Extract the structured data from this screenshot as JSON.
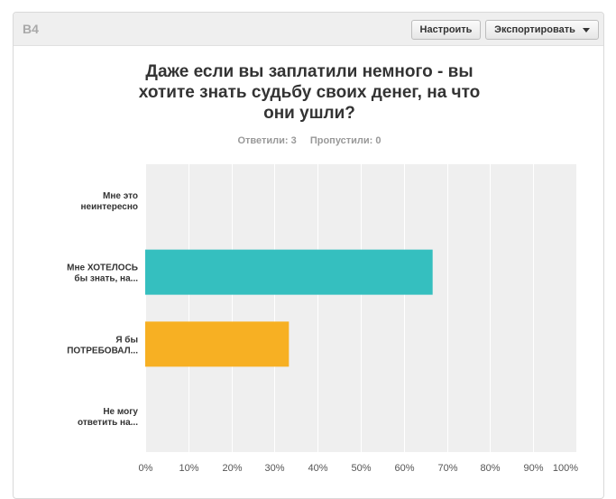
{
  "question_number": "B4",
  "buttons": {
    "configure_label": "Настроить",
    "export_label": "Экспортировать"
  },
  "stats": {
    "answered": "Ответили: 3",
    "skipped": "Пропустили: 0"
  },
  "colors": {
    "bar_1": "#35bfbf",
    "bar_2": "#f7b023",
    "plot_bg": "#efefef"
  },
  "chart_data": {
    "type": "bar",
    "orientation": "horizontal",
    "title": "Даже если вы заплатили немного - вы\nхотите знать судьбу своих  денег, на что\nони ушли?",
    "categories": [
      "Мне это неинтересно",
      "Мне ХОТЕЛОСЬ бы знать, на...",
      "Я бы ПОТРЕБОВАЛ...",
      "Не могу ответить на..."
    ],
    "category_lines": [
      [
        "Мне это",
        "неинтересно"
      ],
      [
        "Мне ХОТЕЛОСЬ",
        "бы знать, на..."
      ],
      [
        "Я бы",
        "ПОТРЕБОВАЛ..."
      ],
      [
        "Не могу",
        "ответить на..."
      ]
    ],
    "values": [
      0,
      66.67,
      33.33,
      0
    ],
    "xlim": [
      0,
      100
    ],
    "x_ticks": [
      "0%",
      "10%",
      "20%",
      "30%",
      "40%",
      "50%",
      "60%",
      "70%",
      "80%",
      "90%",
      "100%"
    ],
    "grid": true
  }
}
